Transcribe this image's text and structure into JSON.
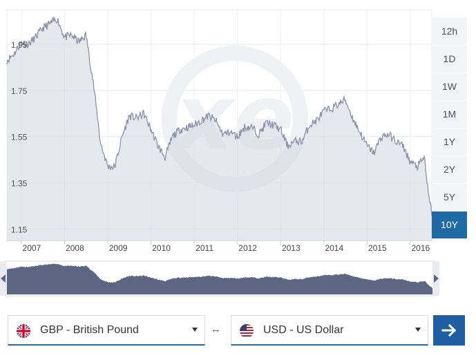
{
  "chart_data": {
    "type": "area",
    "title": "",
    "xlabel": "",
    "ylabel": "",
    "ylim": [
      1.1,
      2.1
    ],
    "xlim": [
      "2006-09-01",
      "2016-07-01"
    ],
    "yticks": [
      "1.95",
      "1.75",
      "1.55",
      "1.35",
      "1.15"
    ],
    "xticks": [
      "2007",
      "2008",
      "2009",
      "2010",
      "2011",
      "2012",
      "2013",
      "2014",
      "2015",
      "2016"
    ],
    "grid": true,
    "legend": "none",
    "series": [
      {
        "x": [
          "2006-09",
          "2006-11",
          "2007-01",
          "2007-03",
          "2007-05",
          "2007-07",
          "2007-09",
          "2007-11",
          "2008-01",
          "2008-03",
          "2008-05",
          "2008-07",
          "2008-09",
          "2008-11",
          "2009-01",
          "2009-03",
          "2009-05",
          "2009-07",
          "2009-09",
          "2009-11",
          "2010-01",
          "2010-03",
          "2010-05",
          "2010-07",
          "2010-09",
          "2010-11",
          "2011-01",
          "2011-03",
          "2011-05",
          "2011-07",
          "2011-09",
          "2011-11",
          "2012-01",
          "2012-03",
          "2012-05",
          "2012-07",
          "2012-09",
          "2012-11",
          "2013-01",
          "2013-03",
          "2013-05",
          "2013-07",
          "2013-09",
          "2013-11",
          "2014-01",
          "2014-03",
          "2014-05",
          "2014-07",
          "2014-09",
          "2014-11",
          "2015-01",
          "2015-03",
          "2015-05",
          "2015-07",
          "2015-09",
          "2015-11",
          "2016-01",
          "2016-03",
          "2016-05",
          "2016-06",
          "2016-07"
        ],
        "values": [
          1.88,
          1.91,
          1.96,
          1.95,
          1.98,
          2.02,
          2.04,
          2.06,
          1.98,
          1.99,
          1.96,
          1.99,
          1.78,
          1.52,
          1.42,
          1.42,
          1.55,
          1.64,
          1.63,
          1.65,
          1.58,
          1.51,
          1.46,
          1.55,
          1.58,
          1.59,
          1.6,
          1.62,
          1.64,
          1.62,
          1.56,
          1.57,
          1.55,
          1.59,
          1.59,
          1.56,
          1.61,
          1.6,
          1.58,
          1.51,
          1.53,
          1.53,
          1.6,
          1.62,
          1.66,
          1.67,
          1.69,
          1.71,
          1.63,
          1.57,
          1.51,
          1.48,
          1.55,
          1.56,
          1.53,
          1.51,
          1.44,
          1.42,
          1.46,
          1.3,
          1.22
        ]
      }
    ]
  },
  "watermark": "xe",
  "navigator": {
    "left_handle_icon": "triangle-left-icon",
    "right_handle_icon": "triangle-right-icon"
  },
  "range_buttons": [
    "12h",
    "1D",
    "1W",
    "1M",
    "1Y",
    "2Y",
    "5Y",
    "10Y"
  ],
  "active_range": "10Y",
  "from_currency": {
    "label": "GBP - British Pound",
    "flag_icon": "uk-flag-icon"
  },
  "to_currency": {
    "label": "USD - US Dollar",
    "flag_icon": "us-flag-icon"
  },
  "swap_icon": "↔",
  "convert_icon": "arrow-right-icon",
  "colors": {
    "accent": "#1f6aa5",
    "line": "#8c92a8",
    "nav_fill": "#5c6683"
  }
}
